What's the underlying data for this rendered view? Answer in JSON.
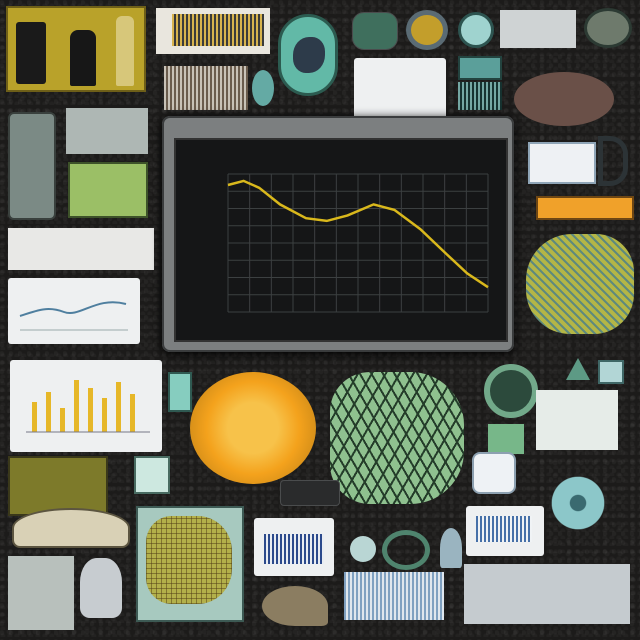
{
  "colors": {
    "background": "#1c1b1a",
    "monitor_frame": "#7c7f80",
    "screen": "#151617",
    "curve": "#d9b81c",
    "sun_orange": "#f4a21c",
    "leaf_green": "#8fc18f",
    "accent_yellow": "#c6a72a",
    "orange_strip": "#f0a12a"
  },
  "icons": {
    "top_left_bottles": "bottle-icon",
    "fish_badge": "fish-icon",
    "shell": "shell-icon",
    "sun": "sun-icon",
    "leaf": "leaf-icon",
    "flower": "flower-icon",
    "lamp": "lamp-icon",
    "pillow": "pillow-icon"
  },
  "main_chart": {
    "title": "",
    "series_points": [
      [
        0.0,
        0.92
      ],
      [
        0.06,
        0.95
      ],
      [
        0.12,
        0.9
      ],
      [
        0.2,
        0.78
      ],
      [
        0.3,
        0.68
      ],
      [
        0.38,
        0.66
      ],
      [
        0.46,
        0.7
      ],
      [
        0.56,
        0.78
      ],
      [
        0.64,
        0.74
      ],
      [
        0.74,
        0.6
      ],
      [
        0.84,
        0.42
      ],
      [
        0.92,
        0.28
      ],
      [
        1.0,
        0.18
      ]
    ]
  }
}
